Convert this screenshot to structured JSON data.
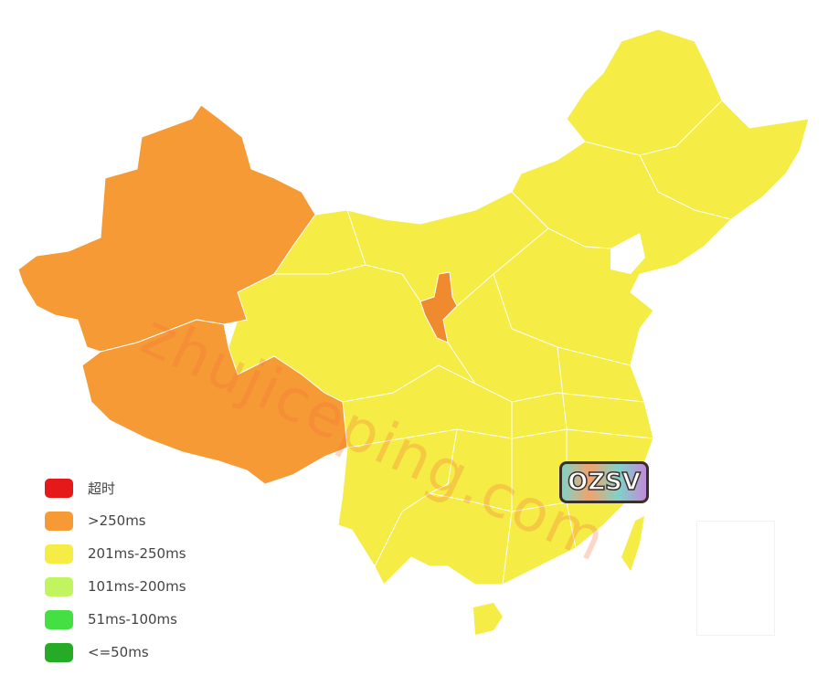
{
  "map": {
    "regions": [
      {
        "name": "xinjiang",
        "category": ">250ms"
      },
      {
        "name": "tibet",
        "category": ">250ms"
      },
      {
        "name": "ningxia",
        "category": ">250ms"
      },
      {
        "name": "rest-of-china",
        "category": "201ms-250ms"
      }
    ],
    "colors": {
      "timeout": "#e5191a",
      "over250": "#f59a35",
      "201_250": "#f5ec45",
      "101_200": "#c0f560",
      "51_100": "#44e043",
      "le50": "#25ab25",
      "ningxia_highlight": "#f08a2e"
    }
  },
  "legend": {
    "items": [
      {
        "label": "超时",
        "color": "#e5191a"
      },
      {
        "label": ">250ms",
        "color": "#f59a35"
      },
      {
        "label": "201ms-250ms",
        "color": "#f5ec45"
      },
      {
        "label": "101ms-200ms",
        "color": "#c0f560"
      },
      {
        "label": "51ms-100ms",
        "color": "#44e043"
      },
      {
        "label": "<=50ms",
        "color": "#25ab25"
      }
    ]
  },
  "watermark": {
    "text": "zhujiceping.com"
  },
  "logo": {
    "text": "OZSV"
  }
}
